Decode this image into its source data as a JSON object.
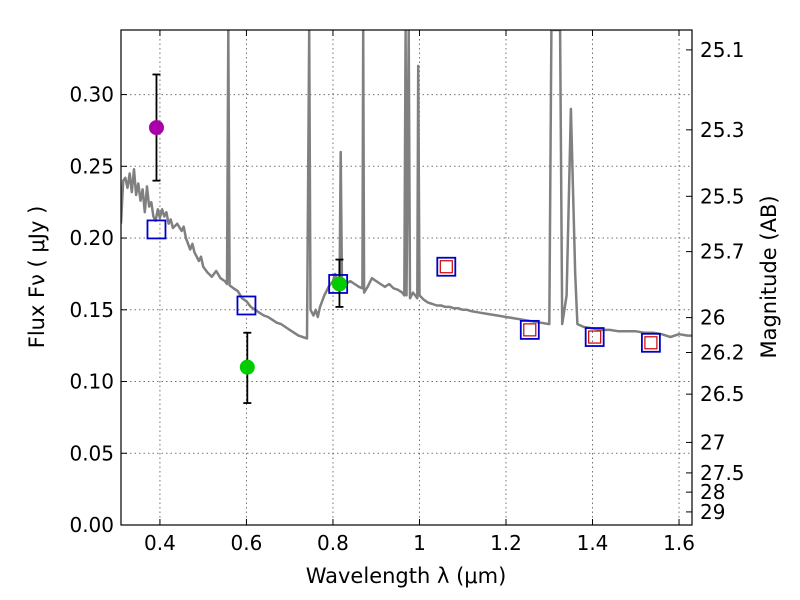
{
  "chart_data": {
    "type": "scatter",
    "xlabel": "Wavelength  λ (μm)",
    "ylabel": "Flux  Fν  ( μJy )",
    "ylabel_right": "Magnitude (AB)",
    "xlim": [
      0.31,
      1.63
    ],
    "ylim": [
      0.0,
      0.345
    ],
    "grid": true,
    "x_ticks": [
      {
        "value": 0.4,
        "label": "0.4"
      },
      {
        "value": 0.6,
        "label": "0.6"
      },
      {
        "value": 0.8,
        "label": "0.8"
      },
      {
        "value": 1.0,
        "label": "1"
      },
      {
        "value": 1.2,
        "label": "1.2"
      },
      {
        "value": 1.4,
        "label": "1.4"
      },
      {
        "value": 1.6,
        "label": "1.6"
      }
    ],
    "y_ticks": [
      {
        "value": 0.0,
        "label": "0.00"
      },
      {
        "value": 0.05,
        "label": "0.05"
      },
      {
        "value": 0.1,
        "label": "0.10"
      },
      {
        "value": 0.15,
        "label": "0.15"
      },
      {
        "value": 0.2,
        "label": "0.20"
      },
      {
        "value": 0.25,
        "label": "0.25"
      },
      {
        "value": 0.3,
        "label": "0.30"
      }
    ],
    "mag_ticks": [
      {
        "value": 25.1,
        "label": "25.1"
      },
      {
        "value": 25.3,
        "label": "25.3"
      },
      {
        "value": 25.5,
        "label": "25.5"
      },
      {
        "value": 25.7,
        "label": "25.7"
      },
      {
        "value": 26.0,
        "label": "26"
      },
      {
        "value": 26.2,
        "label": "26.2"
      },
      {
        "value": 26.5,
        "label": "26.5"
      },
      {
        "value": 27.0,
        "label": "27"
      },
      {
        "value": 27.5,
        "label": "27.5"
      },
      {
        "value": 28.0,
        "label": "28"
      },
      {
        "value": 29.0,
        "label": "29"
      }
    ],
    "series": [
      {
        "name": "model spectrum",
        "kind": "line",
        "color": "#808080",
        "points": [
          [
            0.31,
            0.21
          ],
          [
            0.315,
            0.24
          ],
          [
            0.32,
            0.242
          ],
          [
            0.325,
            0.235
          ],
          [
            0.33,
            0.245
          ],
          [
            0.335,
            0.232
          ],
          [
            0.34,
            0.248
          ],
          [
            0.345,
            0.23
          ],
          [
            0.35,
            0.238
          ],
          [
            0.355,
            0.226
          ],
          [
            0.36,
            0.234
          ],
          [
            0.365,
            0.218
          ],
          [
            0.37,
            0.236
          ],
          [
            0.375,
            0.222
          ],
          [
            0.38,
            0.225
          ],
          [
            0.385,
            0.215
          ],
          [
            0.39,
            0.212
          ],
          [
            0.395,
            0.22
          ],
          [
            0.4,
            0.214
          ],
          [
            0.405,
            0.22
          ],
          [
            0.41,
            0.215
          ],
          [
            0.415,
            0.218
          ],
          [
            0.42,
            0.21
          ],
          [
            0.425,
            0.213
          ],
          [
            0.43,
            0.207
          ],
          [
            0.44,
            0.21
          ],
          [
            0.45,
            0.205
          ],
          [
            0.455,
            0.208
          ],
          [
            0.46,
            0.2
          ],
          [
            0.47,
            0.192
          ],
          [
            0.475,
            0.196
          ],
          [
            0.48,
            0.19
          ],
          [
            0.49,
            0.184
          ],
          [
            0.495,
            0.187
          ],
          [
            0.5,
            0.18
          ],
          [
            0.51,
            0.176
          ],
          [
            0.52,
            0.173
          ],
          [
            0.53,
            0.177
          ],
          [
            0.54,
            0.172
          ],
          [
            0.55,
            0.17
          ],
          [
            0.555,
            0.168
          ],
          [
            0.558,
            0.345
          ],
          [
            0.561,
            0.167
          ],
          [
            0.57,
            0.165
          ],
          [
            0.58,
            0.163
          ],
          [
            0.59,
            0.158
          ],
          [
            0.6,
            0.156
          ],
          [
            0.61,
            0.152
          ],
          [
            0.62,
            0.15
          ],
          [
            0.63,
            0.148
          ],
          [
            0.64,
            0.146
          ],
          [
            0.65,
            0.145
          ],
          [
            0.66,
            0.143
          ],
          [
            0.67,
            0.141
          ],
          [
            0.68,
            0.14
          ],
          [
            0.69,
            0.138
          ],
          [
            0.7,
            0.136
          ],
          [
            0.71,
            0.134
          ],
          [
            0.72,
            0.132
          ],
          [
            0.73,
            0.131
          ],
          [
            0.74,
            0.13
          ],
          [
            0.745,
            0.345
          ],
          [
            0.748,
            0.15
          ],
          [
            0.755,
            0.146
          ],
          [
            0.76,
            0.15
          ],
          [
            0.765,
            0.145
          ],
          [
            0.77,
            0.152
          ],
          [
            0.78,
            0.16
          ],
          [
            0.79,
            0.166
          ],
          [
            0.8,
            0.17
          ],
          [
            0.805,
            0.175
          ],
          [
            0.81,
            0.17
          ],
          [
            0.815,
            0.163
          ],
          [
            0.818,
            0.26
          ],
          [
            0.821,
            0.165
          ],
          [
            0.83,
            0.168
          ],
          [
            0.84,
            0.17
          ],
          [
            0.85,
            0.168
          ],
          [
            0.86,
            0.166
          ],
          [
            0.868,
            0.165
          ],
          [
            0.87,
            0.345
          ],
          [
            0.872,
            0.162
          ],
          [
            0.88,
            0.166
          ],
          [
            0.89,
            0.172
          ],
          [
            0.9,
            0.17
          ],
          [
            0.91,
            0.168
          ],
          [
            0.92,
            0.166
          ],
          [
            0.93,
            0.168
          ],
          [
            0.94,
            0.165
          ],
          [
            0.95,
            0.164
          ],
          [
            0.96,
            0.162
          ],
          [
            0.965,
            0.16
          ],
          [
            0.968,
            0.345
          ],
          [
            0.97,
            0.16
          ],
          [
            0.975,
            0.345
          ],
          [
            0.978,
            0.158
          ],
          [
            0.985,
            0.162
          ],
          [
            0.99,
            0.16
          ],
          [
            0.995,
            0.158
          ],
          [
            0.997,
            0.32
          ],
          [
            1.0,
            0.16
          ],
          [
            1.01,
            0.157
          ],
          [
            1.02,
            0.155
          ],
          [
            1.03,
            0.154
          ],
          [
            1.04,
            0.153
          ],
          [
            1.05,
            0.153
          ],
          [
            1.06,
            0.152
          ],
          [
            1.07,
            0.152
          ],
          [
            1.08,
            0.151
          ],
          [
            1.09,
            0.151
          ],
          [
            1.1,
            0.15
          ],
          [
            1.11,
            0.15
          ],
          [
            1.12,
            0.149
          ],
          [
            1.14,
            0.148
          ],
          [
            1.16,
            0.147
          ],
          [
            1.18,
            0.146
          ],
          [
            1.2,
            0.145
          ],
          [
            1.22,
            0.144
          ],
          [
            1.24,
            0.143
          ],
          [
            1.26,
            0.142
          ],
          [
            1.28,
            0.141
          ],
          [
            1.3,
            0.14
          ],
          [
            1.305,
            0.345
          ],
          [
            1.32,
            0.345
          ],
          [
            1.325,
            0.345
          ],
          [
            1.33,
            0.14
          ],
          [
            1.34,
            0.16
          ],
          [
            1.35,
            0.29
          ],
          [
            1.36,
            0.175
          ],
          [
            1.365,
            0.14
          ],
          [
            1.38,
            0.138
          ],
          [
            1.4,
            0.137
          ],
          [
            1.42,
            0.136
          ],
          [
            1.44,
            0.136
          ],
          [
            1.46,
            0.135
          ],
          [
            1.48,
            0.135
          ],
          [
            1.5,
            0.135
          ],
          [
            1.52,
            0.134
          ],
          [
            1.54,
            0.134
          ],
          [
            1.56,
            0.133
          ],
          [
            1.58,
            0.131
          ],
          [
            1.6,
            0.133
          ],
          [
            1.62,
            0.132
          ],
          [
            1.63,
            0.132
          ]
        ]
      },
      {
        "name": "model photometry",
        "kind": "open-square",
        "color": "#0000cc",
        "points": [
          {
            "x": 0.392,
            "y": 0.206
          },
          {
            "x": 0.6,
            "y": 0.153
          },
          {
            "x": 0.812,
            "y": 0.168
          },
          {
            "x": 1.062,
            "y": 0.18
          },
          {
            "x": 1.255,
            "y": 0.136
          },
          {
            "x": 1.405,
            "y": 0.131
          },
          {
            "x": 1.535,
            "y": 0.127
          }
        ]
      },
      {
        "name": "observed limits",
        "kind": "open-square",
        "color": "#cc0000",
        "points": [
          {
            "x": 1.062,
            "y": 0.18
          },
          {
            "x": 1.255,
            "y": 0.136
          },
          {
            "x": 1.405,
            "y": 0.131
          },
          {
            "x": 1.535,
            "y": 0.127
          }
        ]
      },
      {
        "name": "observed photometry",
        "kind": "filled-circle",
        "points": [
          {
            "x": 0.392,
            "y": 0.277,
            "err_low": 0.24,
            "err_high": 0.314,
            "color": "#aa00aa"
          },
          {
            "x": 0.602,
            "y": 0.11,
            "err_low": 0.085,
            "err_high": 0.134,
            "color": "#00cc00"
          },
          {
            "x": 0.815,
            "y": 0.168,
            "err_low": 0.152,
            "err_high": 0.185,
            "color": "#00cc00"
          }
        ]
      }
    ]
  }
}
